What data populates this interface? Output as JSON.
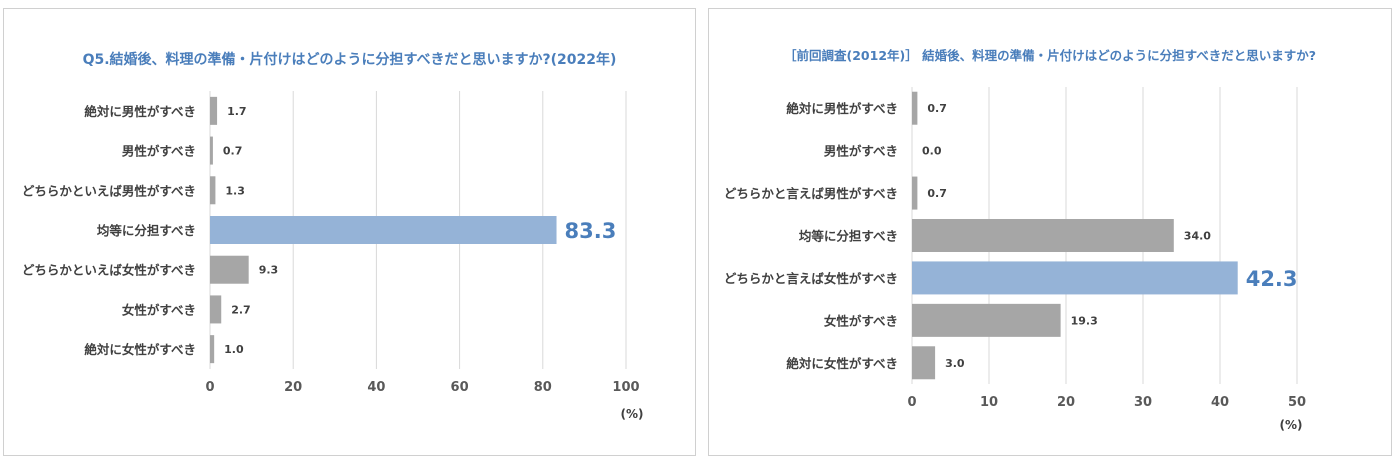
{
  "chart_data": [
    {
      "type": "bar",
      "orientation": "horizontal",
      "title": "Q5.結婚後、料理の準備・片付けはどのように分担すべきだと思いますか?(2022年)",
      "categories": [
        "絶対に男性がすべき",
        "男性がすべき",
        "どちらかといえば男性がすべき",
        "均等に分担すべき",
        "どちらかといえば女性がすべき",
        "女性がすべき",
        "絶対に女性がすべき"
      ],
      "values": [
        1.7,
        0.7,
        1.3,
        83.3,
        9.3,
        2.7,
        1.0
      ],
      "value_labels": [
        "1.7",
        "0.7",
        "1.3",
        "83.3",
        "9.3",
        "2.7",
        "1.0"
      ],
      "highlight_index": 3,
      "xlim": [
        0,
        100
      ],
      "xticks": [
        "0",
        "20",
        "40",
        "60",
        "80",
        "100"
      ],
      "unit": "(%)",
      "grid": "vertical",
      "colors": {
        "bar": "#a6a6a6",
        "highlight": "#95b3d7",
        "highlight_text": "#4a7ebb"
      }
    },
    {
      "type": "bar",
      "orientation": "horizontal",
      "title": "［前回調査(2012年)］ 結婚後、料理の準備・片付けはどのように分担すべきだと思いますか?",
      "categories": [
        "絶対に男性がすべき",
        "男性がすべき",
        "どちらかと言えば男性がすべき",
        "均等に分担すべき",
        "どちらかと言えば女性がすべき",
        "女性がすべき",
        "絶対に女性がすべき"
      ],
      "values": [
        0.7,
        0.0,
        0.7,
        34.0,
        42.3,
        19.3,
        3.0
      ],
      "value_labels": [
        "0.7",
        "0.0",
        "0.7",
        "34.0",
        "42.3",
        "19.3",
        "3.0"
      ],
      "highlight_index": 4,
      "xlim": [
        0,
        50
      ],
      "xticks": [
        "0",
        "10",
        "20",
        "30",
        "40",
        "50"
      ],
      "unit": "(%)",
      "grid": "vertical",
      "colors": {
        "bar": "#a6a6a6",
        "highlight": "#95b3d7",
        "highlight_text": "#4a7ebb"
      }
    }
  ]
}
